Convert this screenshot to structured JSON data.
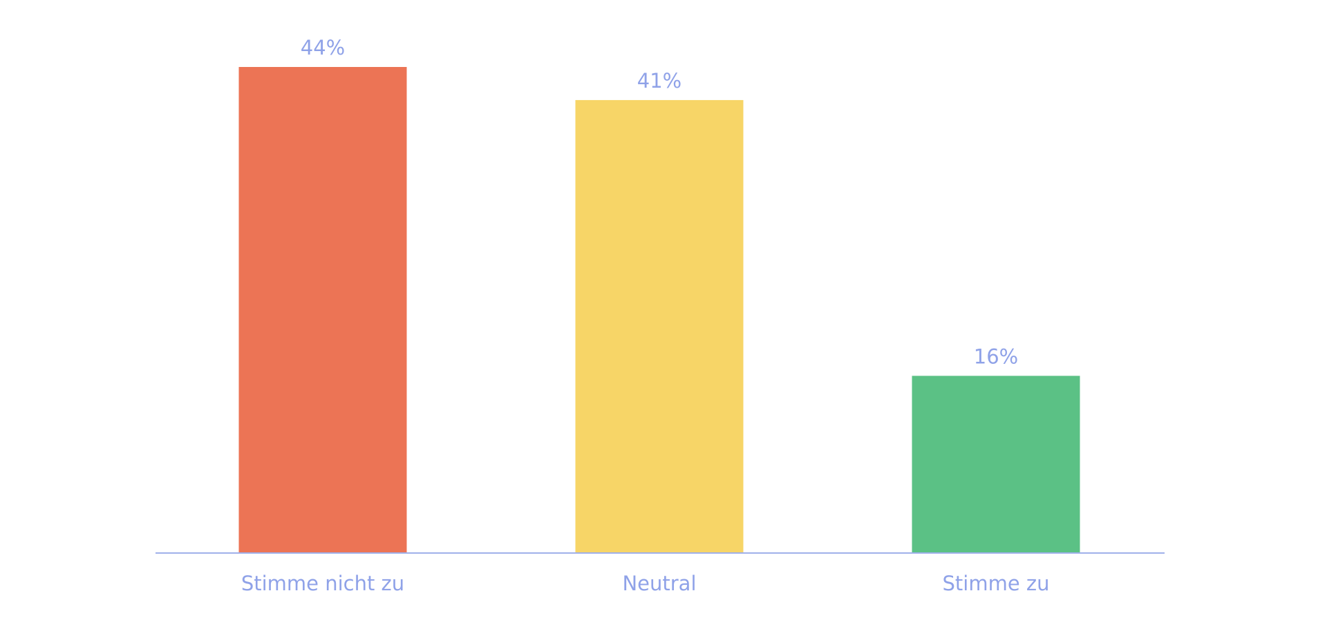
{
  "chart_data": {
    "type": "bar",
    "categories": [
      "Stimme nicht zu",
      "Neutral",
      "Stimme zu"
    ],
    "values": [
      44,
      41,
      16
    ],
    "value_labels": [
      "44%",
      "41%",
      "16%"
    ],
    "unit": "%",
    "colors": [
      "#ec7455",
      "#f7d567",
      "#5bc185"
    ],
    "text_color": "#8fa2e8",
    "axis_color": "#9fb0ea",
    "ylim": [
      0,
      44
    ],
    "grid": false,
    "legend": "none",
    "title": "",
    "xlabel": "",
    "ylabel": ""
  }
}
